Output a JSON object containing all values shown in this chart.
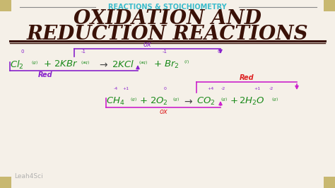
{
  "bg_color": "#f5f0e8",
  "border_color": "#c8b870",
  "subtitle_text": "REACTIONS & STOICHIOMETRY",
  "subtitle_color": "#3bbccc",
  "title_line1": "OXIDATION AND",
  "title_line2": "REDUCTION REACTIONS",
  "title_color": "#3a1208",
  "watermark": "Leah4Sci",
  "watermark_color": "#aaaaaa",
  "green_color": "#1a8a1a",
  "purple_color": "#8822cc",
  "magenta_color": "#cc22cc",
  "red_color": "#dd2222"
}
